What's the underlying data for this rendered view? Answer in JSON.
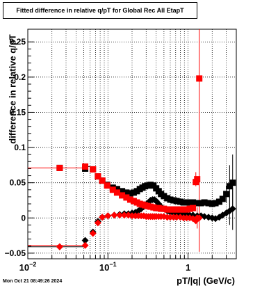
{
  "chart_data": {
    "type": "scatter",
    "title": "Fitted difference in relative q/pT for Global Rec All EtapT",
    "xlabel": "pT/|q| (GeV/c)",
    "ylabel": "difference in relative q/pT",
    "xscale": "log",
    "xlim": [
      0.01,
      4.0
    ],
    "ylim": [
      -0.058,
      0.268
    ],
    "xticks": [
      {
        "value": 0.01,
        "label": "10",
        "exp": "−2"
      },
      {
        "value": 0.1,
        "label": "10",
        "exp": "−1"
      },
      {
        "value": 1,
        "label": "1",
        "exp": ""
      }
    ],
    "yticks": [
      {
        "value": -0.05,
        "label": "−0.05"
      },
      {
        "value": 0,
        "label": "0"
      },
      {
        "value": 0.05,
        "label": "0.05"
      },
      {
        "value": 0.1,
        "label": "0.1"
      },
      {
        "value": 0.15,
        "label": "0.15"
      },
      {
        "value": 0.2,
        "label": "0.2"
      },
      {
        "value": 0.25,
        "label": "0.25"
      }
    ],
    "grid": true,
    "series": [
      {
        "color": "#000000",
        "marker": "square",
        "points": [
          [
            0.025,
            0.071
          ],
          [
            0.052,
            0.07
          ],
          [
            0.065,
            0.069
          ],
          [
            0.075,
            0.059
          ],
          [
            0.085,
            0.053
          ],
          [
            0.098,
            0.047
          ],
          [
            0.115,
            0.043
          ],
          [
            0.13,
            0.041
          ],
          [
            0.15,
            0.038
          ],
          [
            0.17,
            0.036
          ],
          [
            0.19,
            0.035
          ],
          [
            0.21,
            0.036
          ],
          [
            0.23,
            0.038
          ],
          [
            0.25,
            0.041
          ],
          [
            0.27,
            0.043
          ],
          [
            0.29,
            0.045
          ],
          [
            0.31,
            0.046
          ],
          [
            0.34,
            0.047
          ],
          [
            0.37,
            0.046
          ],
          [
            0.4,
            0.042
          ],
          [
            0.43,
            0.038
          ],
          [
            0.46,
            0.034
          ],
          [
            0.5,
            0.031
          ],
          [
            0.55,
            0.028
          ],
          [
            0.6,
            0.026
          ],
          [
            0.66,
            0.025
          ],
          [
            0.72,
            0.024
          ],
          [
            0.8,
            0.023
          ],
          [
            0.88,
            0.022
          ],
          [
            0.96,
            0.022
          ],
          [
            1.05,
            0.022
          ],
          [
            1.15,
            0.022
          ],
          [
            1.3,
            0.021
          ],
          [
            1.45,
            0.021
          ],
          [
            1.6,
            0.022
          ],
          [
            1.8,
            0.021
          ],
          [
            2.0,
            0.02
          ],
          [
            2.2,
            0.021
          ],
          [
            2.45,
            0.023
          ],
          [
            2.7,
            0.027
          ],
          [
            3.0,
            0.034
          ],
          [
            3.3,
            0.045
          ],
          [
            3.6,
            0.05
          ]
        ]
      },
      {
        "color": "#000000",
        "marker": "diamond",
        "points": [
          [
            0.025,
            -0.041
          ],
          [
            0.052,
            -0.032
          ],
          [
            0.065,
            -0.02
          ],
          [
            0.075,
            -0.005
          ],
          [
            0.085,
            0.001
          ],
          [
            0.1,
            0.003
          ],
          [
            0.12,
            0.004
          ],
          [
            0.14,
            0.005
          ],
          [
            0.16,
            0.006
          ],
          [
            0.18,
            0.006
          ],
          [
            0.2,
            0.007
          ],
          [
            0.22,
            0.008
          ],
          [
            0.24,
            0.01
          ],
          [
            0.26,
            0.013
          ],
          [
            0.28,
            0.016
          ],
          [
            0.3,
            0.019
          ],
          [
            0.32,
            0.022
          ],
          [
            0.34,
            0.025
          ],
          [
            0.36,
            0.026
          ],
          [
            0.38,
            0.026
          ],
          [
            0.4,
            0.024
          ],
          [
            0.43,
            0.02
          ],
          [
            0.46,
            0.016
          ],
          [
            0.5,
            0.013
          ],
          [
            0.55,
            0.01
          ],
          [
            0.6,
            0.008
          ],
          [
            0.66,
            0.007
          ],
          [
            0.72,
            0.006
          ],
          [
            0.8,
            0.005
          ],
          [
            0.88,
            0.005
          ],
          [
            0.96,
            0.005
          ],
          [
            1.05,
            0.004
          ],
          [
            1.15,
            0.004
          ],
          [
            1.3,
            0.003
          ],
          [
            1.45,
            0.003
          ],
          [
            1.6,
            0.002
          ],
          [
            1.8,
            0.001
          ],
          [
            2.0,
            0.0
          ],
          [
            2.2,
            -0.001
          ],
          [
            2.45,
            0.001
          ],
          [
            2.7,
            0.004
          ],
          [
            3.0,
            0.007
          ],
          [
            3.3,
            0.01
          ],
          [
            3.6,
            0.013
          ]
        ]
      },
      {
        "color": "#ff0000",
        "marker": "square",
        "points": [
          [
            0.025,
            0.071
          ],
          [
            0.052,
            0.073
          ],
          [
            0.065,
            0.069
          ],
          [
            0.075,
            0.059
          ],
          [
            0.085,
            0.053
          ],
          [
            0.098,
            0.046
          ],
          [
            0.115,
            0.04
          ],
          [
            0.13,
            0.036
          ],
          [
            0.15,
            0.032
          ],
          [
            0.17,
            0.029
          ],
          [
            0.19,
            0.026
          ],
          [
            0.21,
            0.024
          ],
          [
            0.23,
            0.022
          ],
          [
            0.25,
            0.02
          ],
          [
            0.27,
            0.019
          ],
          [
            0.29,
            0.018
          ],
          [
            0.31,
            0.017
          ],
          [
            0.34,
            0.016
          ],
          [
            0.37,
            0.015
          ],
          [
            0.4,
            0.014
          ],
          [
            0.43,
            0.014
          ],
          [
            0.46,
            0.013
          ],
          [
            0.5,
            0.013
          ],
          [
            0.55,
            0.012
          ],
          [
            0.6,
            0.012
          ],
          [
            0.66,
            0.012
          ],
          [
            0.72,
            0.012
          ],
          [
            0.8,
            0.012
          ],
          [
            0.88,
            0.012
          ],
          [
            0.96,
            0.012
          ],
          [
            1.05,
            0.013
          ],
          [
            1.15,
            0.014
          ],
          [
            1.25,
            0.051
          ],
          [
            1.3,
            0.055
          ],
          [
            1.38,
            0.198
          ]
        ]
      },
      {
        "color": "#ff0000",
        "marker": "diamond",
        "points": [
          [
            0.025,
            -0.041
          ],
          [
            0.052,
            -0.039
          ],
          [
            0.065,
            -0.022
          ],
          [
            0.075,
            -0.007
          ],
          [
            0.085,
            0.001
          ],
          [
            0.1,
            0.003
          ],
          [
            0.12,
            0.004
          ],
          [
            0.14,
            0.004
          ],
          [
            0.16,
            0.004
          ],
          [
            0.18,
            0.004
          ],
          [
            0.2,
            0.003
          ],
          [
            0.22,
            0.003
          ],
          [
            0.24,
            0.003
          ],
          [
            0.26,
            0.003
          ],
          [
            0.28,
            0.003
          ],
          [
            0.3,
            0.002
          ],
          [
            0.32,
            0.002
          ],
          [
            0.34,
            0.002
          ],
          [
            0.36,
            0.002
          ],
          [
            0.38,
            0.002
          ],
          [
            0.4,
            0.002
          ],
          [
            0.43,
            0.002
          ],
          [
            0.46,
            0.002
          ],
          [
            0.5,
            0.002
          ],
          [
            0.55,
            0.001
          ],
          [
            0.6,
            0.001
          ],
          [
            0.66,
            0.001
          ],
          [
            0.72,
            0.001
          ],
          [
            0.8,
            0.001
          ],
          [
            0.88,
            0.0
          ],
          [
            0.96,
            0.0
          ],
          [
            1.05,
            0.0
          ],
          [
            1.15,
            -0.001
          ],
          [
            1.25,
            -0.004
          ],
          [
            1.3,
            0.0
          ],
          [
            1.38,
            0.0
          ]
        ]
      }
    ]
  },
  "footer": {
    "timestamp": "Mon Oct 21 08:49:26 2024"
  }
}
